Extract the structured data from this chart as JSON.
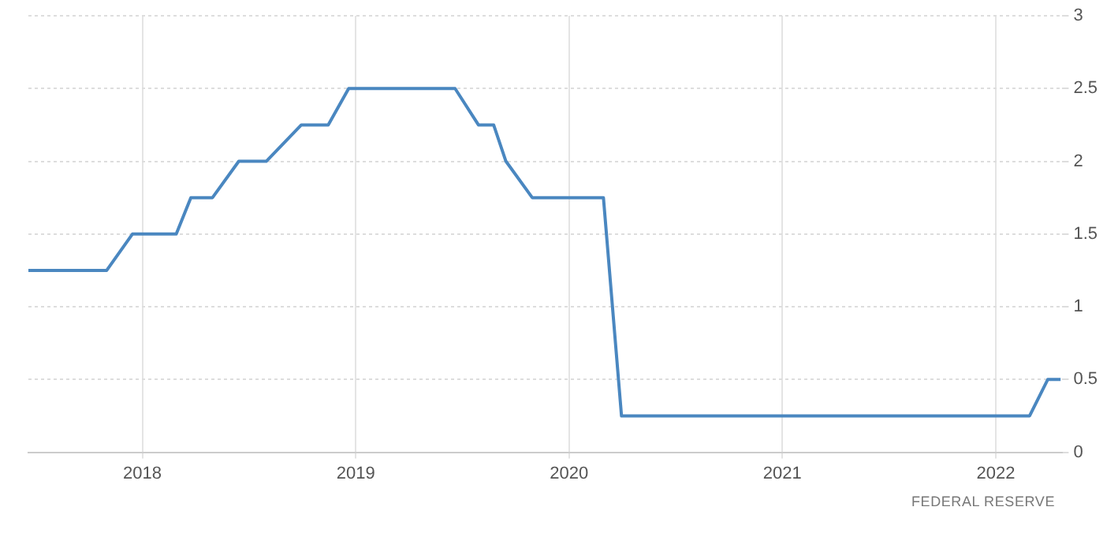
{
  "chart_data": {
    "type": "line",
    "x": [
      "2017-06-20",
      "2017-11-01",
      "2017-12-15",
      "2018-02-28",
      "2018-03-25",
      "2018-05-01",
      "2018-06-15",
      "2018-08-01",
      "2018-09-30",
      "2018-11-15",
      "2018-12-20",
      "2019-06-20",
      "2019-07-30",
      "2019-08-25",
      "2019-09-15",
      "2019-10-30",
      "2020-02-29",
      "2020-03-31",
      "2022-02-28",
      "2022-03-31",
      "2022-04-22"
    ],
    "series": [
      {
        "color": "#4a87c0",
        "values": [
          1.25,
          1.25,
          1.5,
          1.5,
          1.75,
          1.75,
          2,
          2,
          2.25,
          2.25,
          2.5,
          2.5,
          2.25,
          2.25,
          2,
          1.75,
          1.75,
          0.25,
          0.25,
          0.5,
          0.5
        ]
      }
    ],
    "xlim": [
      "2017-06-20",
      "2022-04-25"
    ],
    "xticks": [
      {
        "value": "2018-01-01",
        "label": "2018"
      },
      {
        "value": "2019-01-01",
        "label": "2019"
      },
      {
        "value": "2020-01-01",
        "label": "2020"
      },
      {
        "value": "2021-01-01",
        "label": "2021"
      },
      {
        "value": "2022-01-01",
        "label": "2022"
      }
    ],
    "ylim": [
      0,
      3
    ],
    "yticks": [
      0,
      0.5,
      1,
      1.5,
      2,
      2.5,
      3
    ],
    "grid": true,
    "marker": "none",
    "line_style": "solid",
    "annotations": [
      "FEDERAL RESERVE"
    ]
  }
}
